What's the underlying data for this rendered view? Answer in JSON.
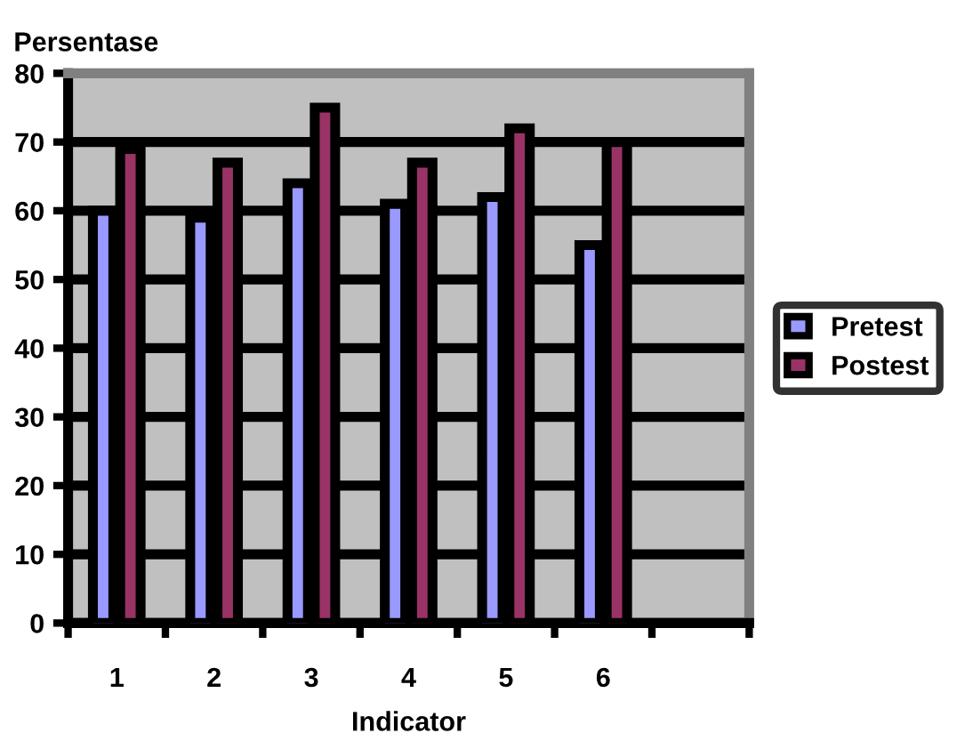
{
  "chart_data": {
    "type": "bar",
    "ylabel": "Persentase",
    "xlabel": "Indicator",
    "categories": [
      "1",
      "2",
      "3",
      "4",
      "5",
      "6",
      null
    ],
    "series": [
      {
        "name": "Pretest",
        "color": "#9999ff",
        "values": [
          60,
          59,
          64,
          61,
          62,
          55,
          null
        ]
      },
      {
        "name": "Postest",
        "color": "#993366",
        "values": [
          69,
          67,
          75,
          67,
          72,
          70,
          null
        ]
      }
    ],
    "ylim": [
      0,
      80
    ],
    "yticks": [
      0,
      10,
      20,
      30,
      40,
      50,
      60,
      70,
      80
    ],
    "grid": "y",
    "legend": "right"
  }
}
